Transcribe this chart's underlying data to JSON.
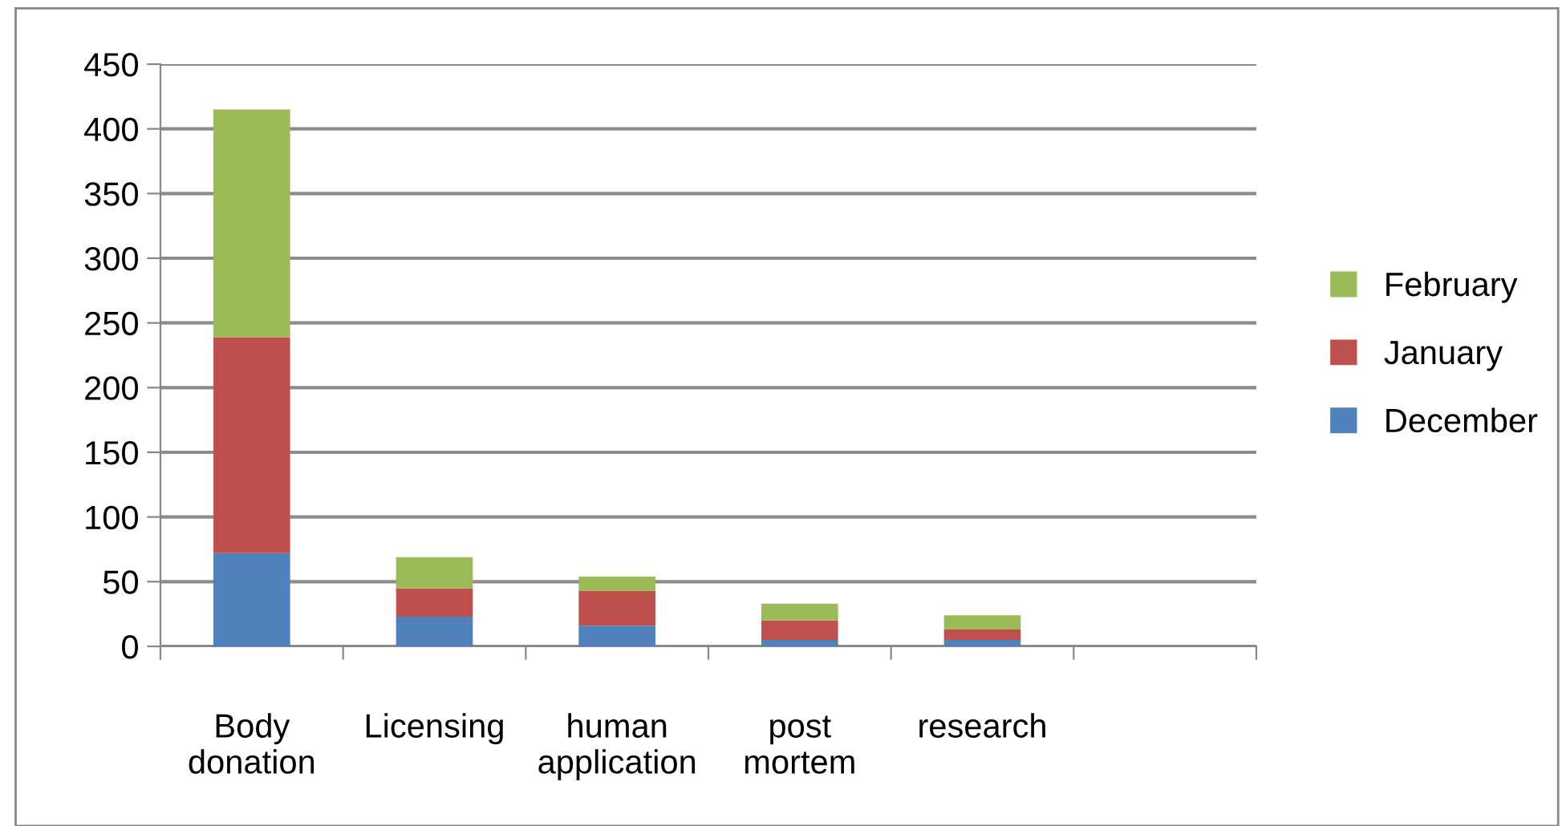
{
  "chart_data": {
    "type": "bar",
    "stacked": true,
    "categories": [
      "Body\ndonation",
      "Licensing",
      "human\napplication",
      "post\nmortem",
      "research",
      null
    ],
    "series": [
      {
        "name": "December",
        "color": "#4f81bd",
        "values": [
          72,
          23,
          16,
          5,
          5,
          null
        ]
      },
      {
        "name": "January",
        "color": "#c0504d",
        "values": [
          167,
          22,
          27,
          15,
          8,
          null
        ]
      },
      {
        "name": "February",
        "color": "#9bbb59",
        "values": [
          176,
          24,
          11,
          13,
          11,
          null
        ]
      }
    ],
    "ylim": [
      0,
      450
    ],
    "yticks": [
      0,
      50,
      100,
      150,
      200,
      250,
      300,
      350,
      400,
      450
    ],
    "grid": "y",
    "legend": "right"
  }
}
